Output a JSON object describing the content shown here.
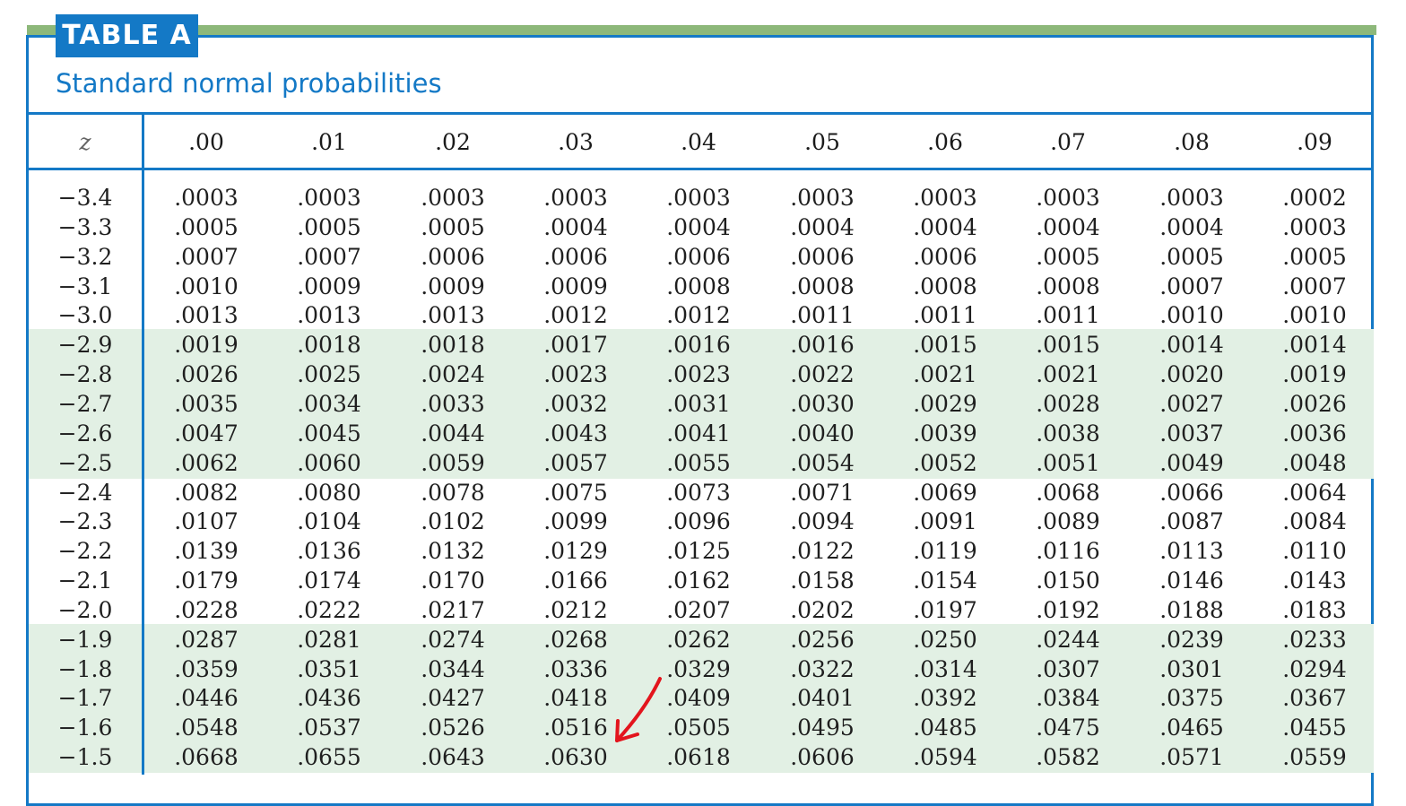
{
  "table": {
    "badge": "TABLE A",
    "subtitle": "Standard normal probabilities",
    "z_label": "z",
    "columns": [
      ".00",
      ".01",
      ".02",
      ".03",
      ".04",
      ".05",
      ".06",
      ".07",
      ".08",
      ".09"
    ],
    "rows": [
      {
        "z": "−3.4",
        "values": [
          ".0003",
          ".0003",
          ".0003",
          ".0003",
          ".0003",
          ".0003",
          ".0003",
          ".0003",
          ".0003",
          ".0002"
        ]
      },
      {
        "z": "−3.3",
        "values": [
          ".0005",
          ".0005",
          ".0005",
          ".0004",
          ".0004",
          ".0004",
          ".0004",
          ".0004",
          ".0004",
          ".0003"
        ]
      },
      {
        "z": "−3.2",
        "values": [
          ".0007",
          ".0007",
          ".0006",
          ".0006",
          ".0006",
          ".0006",
          ".0006",
          ".0005",
          ".0005",
          ".0005"
        ]
      },
      {
        "z": "−3.1",
        "values": [
          ".0010",
          ".0009",
          ".0009",
          ".0009",
          ".0008",
          ".0008",
          ".0008",
          ".0008",
          ".0007",
          ".0007"
        ]
      },
      {
        "z": "−3.0",
        "values": [
          ".0013",
          ".0013",
          ".0013",
          ".0012",
          ".0012",
          ".0011",
          ".0011",
          ".0011",
          ".0010",
          ".0010"
        ]
      },
      {
        "z": "−2.9",
        "values": [
          ".0019",
          ".0018",
          ".0018",
          ".0017",
          ".0016",
          ".0016",
          ".0015",
          ".0015",
          ".0014",
          ".0014"
        ]
      },
      {
        "z": "−2.8",
        "values": [
          ".0026",
          ".0025",
          ".0024",
          ".0023",
          ".0023",
          ".0022",
          ".0021",
          ".0021",
          ".0020",
          ".0019"
        ]
      },
      {
        "z": "−2.7",
        "values": [
          ".0035",
          ".0034",
          ".0033",
          ".0032",
          ".0031",
          ".0030",
          ".0029",
          ".0028",
          ".0027",
          ".0026"
        ]
      },
      {
        "z": "−2.6",
        "values": [
          ".0047",
          ".0045",
          ".0044",
          ".0043",
          ".0041",
          ".0040",
          ".0039",
          ".0038",
          ".0037",
          ".0036"
        ]
      },
      {
        "z": "−2.5",
        "values": [
          ".0062",
          ".0060",
          ".0059",
          ".0057",
          ".0055",
          ".0054",
          ".0052",
          ".0051",
          ".0049",
          ".0048"
        ]
      },
      {
        "z": "−2.4",
        "values": [
          ".0082",
          ".0080",
          ".0078",
          ".0075",
          ".0073",
          ".0071",
          ".0069",
          ".0068",
          ".0066",
          ".0064"
        ]
      },
      {
        "z": "−2.3",
        "values": [
          ".0107",
          ".0104",
          ".0102",
          ".0099",
          ".0096",
          ".0094",
          ".0091",
          ".0089",
          ".0087",
          ".0084"
        ]
      },
      {
        "z": "−2.2",
        "values": [
          ".0139",
          ".0136",
          ".0132",
          ".0129",
          ".0125",
          ".0122",
          ".0119",
          ".0116",
          ".0113",
          ".0110"
        ]
      },
      {
        "z": "−2.1",
        "values": [
          ".0179",
          ".0174",
          ".0170",
          ".0166",
          ".0162",
          ".0158",
          ".0154",
          ".0150",
          ".0146",
          ".0143"
        ]
      },
      {
        "z": "−2.0",
        "values": [
          ".0228",
          ".0222",
          ".0217",
          ".0212",
          ".0207",
          ".0202",
          ".0197",
          ".0192",
          ".0188",
          ".0183"
        ]
      },
      {
        "z": "−1.9",
        "values": [
          ".0287",
          ".0281",
          ".0274",
          ".0268",
          ".0262",
          ".0256",
          ".0250",
          ".0244",
          ".0239",
          ".0233"
        ]
      },
      {
        "z": "−1.8",
        "values": [
          ".0359",
          ".0351",
          ".0344",
          ".0336",
          ".0329",
          ".0322",
          ".0314",
          ".0307",
          ".0301",
          ".0294"
        ]
      },
      {
        "z": "−1.7",
        "values": [
          ".0446",
          ".0436",
          ".0427",
          ".0418",
          ".0409",
          ".0401",
          ".0392",
          ".0384",
          ".0375",
          ".0367"
        ]
      },
      {
        "z": "−1.6",
        "values": [
          ".0548",
          ".0537",
          ".0526",
          ".0516",
          ".0505",
          ".0495",
          ".0485",
          ".0475",
          ".0465",
          ".0455"
        ]
      },
      {
        "z": "−1.5",
        "values": [
          ".0668",
          ".0655",
          ".0643",
          ".0630",
          ".0618",
          ".0606",
          ".0594",
          ".0582",
          ".0571",
          ".0559"
        ]
      }
    ]
  },
  "colors": {
    "accent_blue": "#1479c6",
    "band_green": "#e2f0e4",
    "top_rule_green": "#8db87a",
    "annotation_red": "#e3151d"
  },
  "annotation": {
    "icon": "arrow-icon"
  }
}
